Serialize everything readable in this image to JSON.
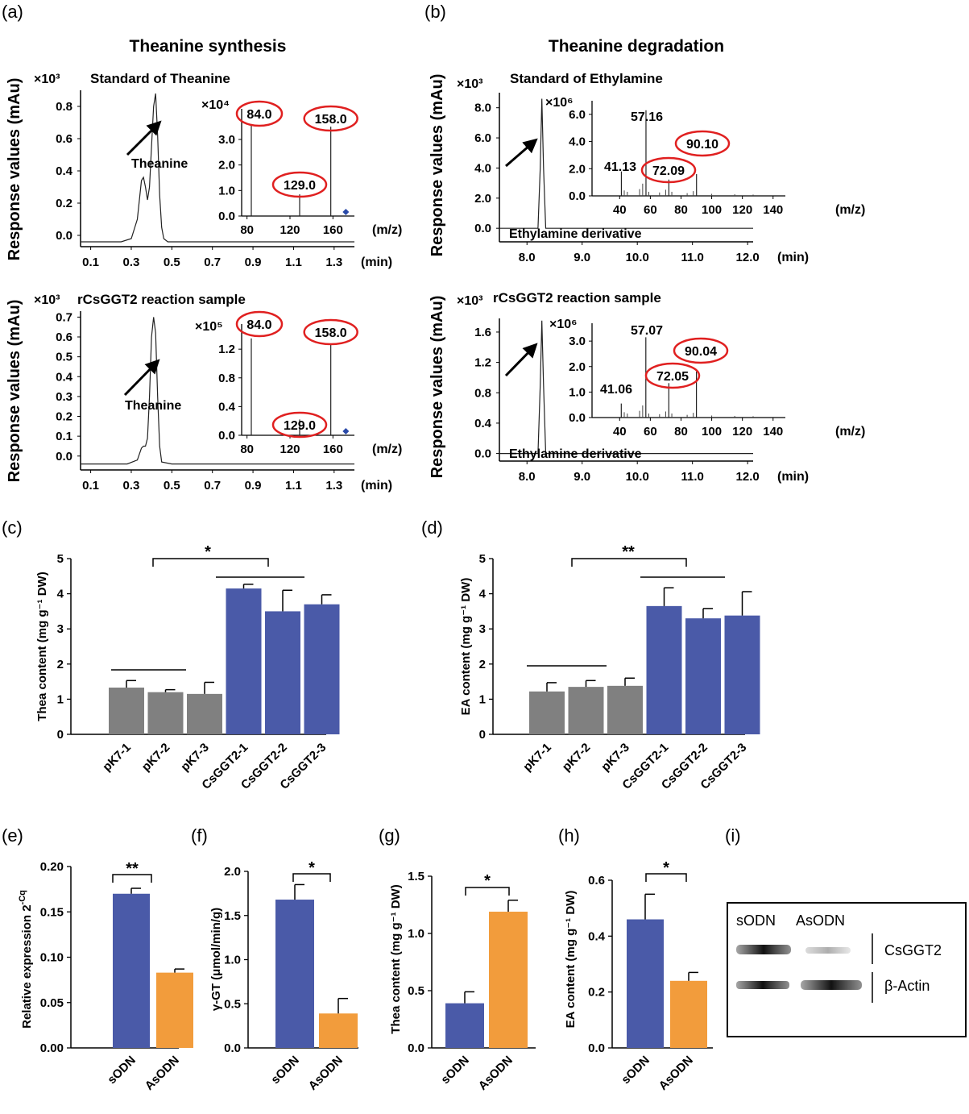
{
  "labels": {
    "a": "(a)",
    "b": "(b)",
    "c": "(c)",
    "d": "(d)",
    "e": "(e)",
    "f": "(f)",
    "g": "(g)",
    "h": "(h)",
    "i": "(i)"
  },
  "colors": {
    "blue": "#4a5aa8",
    "orange": "#f29c3c",
    "gray": "#808080",
    "red": "#e02020",
    "marker": "#2a4aa8"
  },
  "chart_data": [
    {
      "id": "a1",
      "type": "line",
      "title": "Theanine synthesis",
      "subtitle": "Standard of Theanine",
      "ylabel": "Response values (mAu)",
      "scale_label": "×10³",
      "xlabel": "(min)",
      "xlim": [
        0.05,
        1.4
      ],
      "ylim": [
        -0.07,
        0.9
      ],
      "xticks": [
        "0.1",
        "0.3",
        "0.5",
        "0.7",
        "0.9",
        "1.1",
        "1.3"
      ],
      "yticks": [
        "0.0",
        "0.2",
        "0.4",
        "0.6",
        "0.8"
      ],
      "annotation": "Theanine",
      "x": [
        0.05,
        0.25,
        0.3,
        0.33,
        0.35,
        0.36,
        0.37,
        0.38,
        0.39,
        0.4,
        0.41,
        0.42,
        0.43,
        0.44,
        0.45,
        0.46,
        0.48,
        0.55,
        1.4
      ],
      "y": [
        -0.04,
        -0.04,
        -0.02,
        0.1,
        0.34,
        0.36,
        0.3,
        0.22,
        0.3,
        0.55,
        0.8,
        0.88,
        0.62,
        0.25,
        0.05,
        -0.02,
        -0.04,
        -0.04,
        -0.04
      ],
      "inset": {
        "scale_label": "×10⁴",
        "xlabel": "(m/z)",
        "xticks": [
          "80",
          "120",
          "160"
        ],
        "yticks": [
          "0.0",
          "1.0",
          "2.0",
          "3.0"
        ],
        "xlim": [
          75,
          180
        ],
        "ylim": [
          0,
          4.2
        ],
        "peaks": [
          {
            "mz": 84.0,
            "y": 3.6
          },
          {
            "mz": 129.0,
            "y": 0.85
          },
          {
            "mz": 158.0,
            "y": 3.5
          }
        ],
        "labels": [
          "84.0",
          "129.0",
          "158.0"
        ]
      }
    },
    {
      "id": "a2",
      "type": "line",
      "subtitle": "rCsGGT2 reaction sample",
      "ylabel": "Response values (mAu)",
      "scale_label": "×10³",
      "xlabel": "(min)",
      "xlim": [
        0.05,
        1.4
      ],
      "ylim": [
        -0.07,
        0.73
      ],
      "xticks": [
        "0.1",
        "0.3",
        "0.5",
        "0.7",
        "0.9",
        "1.1",
        "1.3"
      ],
      "yticks": [
        "0.0",
        "0.1",
        "0.2",
        "0.3",
        "0.4",
        "0.5",
        "0.6",
        "0.7"
      ],
      "annotation": "Theanine",
      "x": [
        0.05,
        0.28,
        0.33,
        0.35,
        0.36,
        0.37,
        0.38,
        0.39,
        0.4,
        0.41,
        0.42,
        0.43,
        0.44,
        0.45,
        0.5,
        1.4
      ],
      "y": [
        -0.04,
        -0.04,
        -0.02,
        0.04,
        0.05,
        0.05,
        0.09,
        0.3,
        0.6,
        0.7,
        0.62,
        0.3,
        0.05,
        -0.03,
        -0.04,
        -0.04
      ],
      "inset": {
        "scale_label": "×10⁵",
        "xlabel": "(m/z)",
        "xticks": [
          "80",
          "120",
          "160"
        ],
        "yticks": [
          "0.0",
          "0.4",
          "0.8",
          "1.2"
        ],
        "xlim": [
          75,
          180
        ],
        "ylim": [
          0,
          1.55
        ],
        "peaks": [
          {
            "mz": 84.0,
            "y": 1.35
          },
          {
            "mz": 129.0,
            "y": 0.22
          },
          {
            "mz": 158.0,
            "y": 1.27
          }
        ],
        "labels": [
          "84.0",
          "129.0",
          "158.0"
        ]
      }
    },
    {
      "id": "b1",
      "type": "line",
      "title": "Theanine degradation",
      "subtitle": "Standard of Ethylamine",
      "ylabel": "Response values (mAu)",
      "scale_label": "×10³",
      "xlabel": "(min)",
      "xlim": [
        7.5,
        12.1
      ],
      "ylim": [
        -0.9,
        9.0
      ],
      "xticks": [
        "8.0",
        "9.0",
        "10.0",
        "11.0",
        "12.0"
      ],
      "yticks": [
        "0.0",
        "2.0",
        "4.0",
        "6.0",
        "8.0"
      ],
      "annotation": "Ethylamine derivative",
      "x": [
        7.5,
        8.0,
        8.2,
        8.24,
        8.27,
        8.3,
        8.34,
        8.4,
        12.1
      ],
      "y": [
        0.0,
        0.0,
        0.0,
        4.0,
        8.6,
        4.0,
        0.0,
        0.0,
        0.0
      ],
      "inset": {
        "scale_label": "×10⁶",
        "xlabel": "(m/z)",
        "xticks": [
          "40",
          "60",
          "80",
          "100",
          "120",
          "140"
        ],
        "yticks": [
          "0.0",
          "2.0",
          "4.0",
          "6.0"
        ],
        "xlim": [
          22,
          148
        ],
        "ylim": [
          0,
          7.0
        ],
        "peaks": [
          {
            "mz": 41.13,
            "y": 1.8
          },
          {
            "mz": 57.16,
            "y": 6.3
          },
          {
            "mz": 72.09,
            "y": 1.2
          },
          {
            "mz": 90.1,
            "y": 1.6
          }
        ],
        "labels": [
          "41.13",
          "57.16",
          "72.09",
          "90.10"
        ]
      }
    },
    {
      "id": "b2",
      "type": "line",
      "subtitle": "rCsGGT2 reaction sample",
      "ylabel": "Response values (mAu)",
      "scale_label": "×10³",
      "xlabel": "(min)",
      "xlim": [
        7.5,
        12.1
      ],
      "ylim": [
        -0.1,
        1.78
      ],
      "xticks": [
        "8.0",
        "9.0",
        "10.0",
        "11.0",
        "12.0"
      ],
      "yticks": [
        "0.0",
        "0.4",
        "0.8",
        "1.2",
        "1.6"
      ],
      "annotation": "Ethylamine derivative",
      "x": [
        7.5,
        8.0,
        8.2,
        8.24,
        8.27,
        8.3,
        8.34,
        8.4,
        12.1
      ],
      "y": [
        0.0,
        0.0,
        0.0,
        0.9,
        1.75,
        0.9,
        0.0,
        0.0,
        0.0
      ],
      "inset": {
        "scale_label": "×10⁶",
        "xlabel": "(m/z)",
        "xticks": [
          "40",
          "60",
          "80",
          "100",
          "120",
          "140"
        ],
        "yticks": [
          "0.0",
          "1.0",
          "2.0",
          "3.0"
        ],
        "xlim": [
          22,
          148
        ],
        "ylim": [
          0,
          3.7
        ],
        "peaks": [
          {
            "mz": 41.06,
            "y": 0.55
          },
          {
            "mz": 57.07,
            "y": 3.15
          },
          {
            "mz": 72.05,
            "y": 1.35
          },
          {
            "mz": 90.04,
            "y": 1.8
          }
        ],
        "labels": [
          "41.06",
          "57.07",
          "72.05",
          "90.04"
        ]
      }
    },
    {
      "id": "c",
      "type": "bar",
      "ylabel": "Thea content (mg g⁻¹ DW)",
      "ylim": [
        0,
        5
      ],
      "yticks": [
        "0",
        "1",
        "2",
        "3",
        "4",
        "5"
      ],
      "categories": [
        "pK7-1",
        "pK7-2",
        "pK7-3",
        "CsGGT2-1",
        "CsGGT2-2",
        "CsGGT2-3"
      ],
      "values": [
        1.33,
        1.2,
        1.15,
        4.15,
        3.5,
        3.7
      ],
      "errors": [
        0.2,
        0.07,
        0.33,
        0.12,
        0.6,
        0.27
      ],
      "colors": [
        "gray",
        "gray",
        "gray",
        "blue",
        "blue",
        "blue"
      ],
      "significance": "*"
    },
    {
      "id": "d",
      "type": "bar",
      "ylabel": "EA content (mg g⁻¹ DW)",
      "ylim": [
        0,
        5
      ],
      "yticks": [
        "0",
        "1",
        "2",
        "3",
        "4",
        "5"
      ],
      "categories": [
        "pK7-1",
        "pK7-2",
        "pK7-3",
        "CsGGT2-1",
        "CsGGT2-2",
        "CsGGT2-3"
      ],
      "values": [
        1.22,
        1.35,
        1.38,
        3.65,
        3.3,
        3.38
      ],
      "errors": [
        0.25,
        0.18,
        0.22,
        0.52,
        0.28,
        0.68
      ],
      "colors": [
        "gray",
        "gray",
        "gray",
        "blue",
        "blue",
        "blue"
      ],
      "significance": "**"
    },
    {
      "id": "e",
      "type": "bar",
      "ylabel": "Relative expression 2",
      "ylabel_sup": "-Cq",
      "ylim": [
        0,
        0.2
      ],
      "yticks": [
        "0.00",
        "0.05",
        "0.10",
        "0.15",
        "0.20"
      ],
      "categories": [
        "sODN",
        "AsODN"
      ],
      "values": [
        0.17,
        0.083
      ],
      "errors": [
        0.006,
        0.004
      ],
      "colors": [
        "blue",
        "orange"
      ],
      "significance": "**"
    },
    {
      "id": "f",
      "type": "bar",
      "ylabel": "γ-GT (μmol/min/g)",
      "ylim": [
        0,
        2.0
      ],
      "yticks": [
        "0.0",
        "0.5",
        "1.0",
        "1.5",
        "2.0"
      ],
      "categories": [
        "sODN",
        "AsODN"
      ],
      "values": [
        1.68,
        0.39
      ],
      "errors": [
        0.17,
        0.17
      ],
      "colors": [
        "blue",
        "orange"
      ],
      "significance": "*"
    },
    {
      "id": "g",
      "type": "bar",
      "ylabel": "Thea content (mg g⁻¹ DW)",
      "ylim": [
        0,
        1.5
      ],
      "yticks": [
        "0.0",
        "0.5",
        "1.0",
        "1.5"
      ],
      "categories": [
        "sODN",
        "AsODN"
      ],
      "values": [
        0.39,
        1.19
      ],
      "errors": [
        0.1,
        0.1
      ],
      "colors": [
        "blue",
        "orange"
      ],
      "significance": "*"
    },
    {
      "id": "h",
      "type": "bar",
      "ylabel": "EA content (mg g⁻¹ DW)",
      "ylim": [
        0,
        0.6
      ],
      "yticks": [
        "0.0",
        "0.2",
        "0.4",
        "0.6"
      ],
      "categories": [
        "sODN",
        "AsODN"
      ],
      "values": [
        0.46,
        0.24
      ],
      "errors": [
        0.09,
        0.03
      ],
      "colors": [
        "blue",
        "orange"
      ],
      "significance": "*"
    }
  ],
  "blot": {
    "lane_labels": [
      "sODN",
      "AsODN"
    ],
    "bands": [
      "CsGGT2",
      "β-Actin"
    ]
  }
}
